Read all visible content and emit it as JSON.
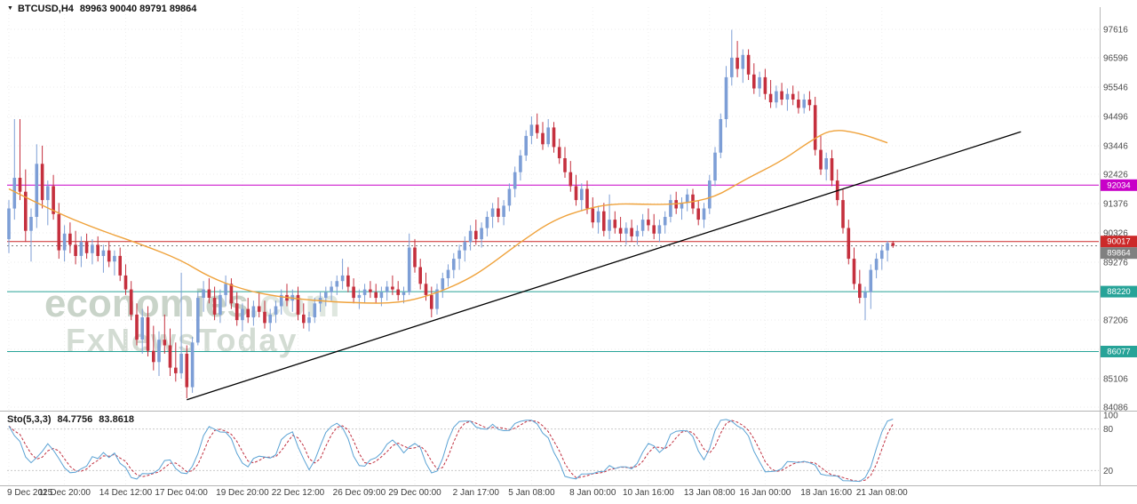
{
  "header": {
    "dropdown_icon": "▼",
    "symbol": "BTCUSD,H4",
    "ohlc": "89963 90040 89791 89864"
  },
  "watermark": {
    "brand": "economies",
    "domain": ".com",
    "tagline": "FxNewsToday"
  },
  "sto": {
    "label": "Sto(5,3,3)",
    "value_main": "84.7756",
    "value_signal": "83.8618",
    "scale_labels": [
      100,
      80,
      20
    ],
    "levels": [
      80,
      20
    ],
    "k_period": 5,
    "d_period": 3,
    "slowing": 3,
    "colors": {
      "main": "#5aa2d4",
      "signal": "#c03040"
    }
  },
  "chart_data": {
    "type": "candlestick",
    "symbol": "BTCUSD",
    "timeframe": "H4",
    "y_ticks": [
      97616,
      96596,
      95546,
      94496,
      93446,
      92426,
      91376,
      90326,
      89276,
      88226,
      87206,
      86156,
      85106,
      84086
    ],
    "x_labels": [
      "9 Dec 2025",
      "11 Dec 20:00",
      "14 Dec 12:00",
      "17 Dec 04:00",
      "19 Dec 20:00",
      "22 Dec 12:00",
      "26 Dec 09:00",
      "29 Dec 00:00",
      "2 Jan 17:00",
      "5 Jan 08:00",
      "8 Jan 00:00",
      "10 Jan 16:00",
      "13 Jan 08:00",
      "16 Jan 00:00",
      "18 Jan 16:00",
      "21 Jan 08:00"
    ],
    "x_label_indices": [
      0,
      10,
      21,
      31,
      42,
      52,
      63,
      73,
      84,
      94,
      105,
      115,
      126,
      136,
      147,
      157
    ],
    "colors": {
      "bull": "#7d9ed6",
      "bear": "#c5303e"
    },
    "levels": [
      {
        "price": 92034,
        "label": "92034",
        "color": "#c800c8",
        "dashed": false
      },
      {
        "price": 90017,
        "label": "90017",
        "color": "#cc2929",
        "dashed": false
      },
      {
        "price": 89864,
        "label": "89864",
        "color": "#808080",
        "dashed": true
      },
      {
        "price": 88220,
        "label": "88220",
        "color": "#27a398",
        "dashed": false
      },
      {
        "price": 86077,
        "label": "86077",
        "color": "#27a398",
        "dashed": false
      }
    ],
    "trendline": {
      "start_index": 32,
      "start_price": 84350,
      "end_index": 182,
      "end_price": 93950,
      "color": "#000000"
    },
    "ma": {
      "color": "#efa23b",
      "points": [
        [
          0,
          91900
        ],
        [
          8,
          91100
        ],
        [
          16,
          90450
        ],
        [
          24,
          89900
        ],
        [
          31,
          89350
        ],
        [
          36,
          88750
        ],
        [
          42,
          88300
        ],
        [
          48,
          88050
        ],
        [
          55,
          87900
        ],
        [
          62,
          87820
        ],
        [
          70,
          87800
        ],
        [
          76,
          88100
        ],
        [
          82,
          88600
        ],
        [
          86,
          89100
        ],
        [
          92,
          90000
        ],
        [
          98,
          90800
        ],
        [
          104,
          91200
        ],
        [
          109,
          91380
        ],
        [
          115,
          91340
        ],
        [
          121,
          91360
        ],
        [
          127,
          91600
        ],
        [
          132,
          92200
        ],
        [
          139,
          92900
        ],
        [
          144,
          93600
        ],
        [
          148,
          94050
        ],
        [
          153,
          93900
        ],
        [
          158,
          93550
        ]
      ]
    },
    "candles": [
      [
        90100,
        91500,
        89600,
        91200
      ],
      [
        91200,
        94400,
        90800,
        92300
      ],
      [
        92300,
        94400,
        91500,
        91800
      ],
      [
        91800,
        92600,
        90000,
        90400
      ],
      [
        90400,
        91200,
        89300,
        90900
      ],
      [
        90900,
        93500,
        90500,
        92800
      ],
      [
        92800,
        93450,
        91200,
        91500
      ],
      [
        91500,
        92200,
        90600,
        92000
      ],
      [
        92000,
        92400,
        90800,
        91000
      ],
      [
        91000,
        91400,
        89400,
        89700
      ],
      [
        89700,
        90600,
        89300,
        90300
      ],
      [
        90300,
        90700,
        89600,
        89900
      ],
      [
        89900,
        90400,
        89200,
        89500
      ],
      [
        89500,
        90200,
        89100,
        90000
      ],
      [
        90000,
        90300,
        89400,
        89600
      ],
      [
        89600,
        90100,
        89200,
        89900
      ],
      [
        89900,
        90200,
        89300,
        89500
      ],
      [
        89500,
        89900,
        88900,
        89700
      ],
      [
        89700,
        90000,
        89100,
        89300
      ],
      [
        89300,
        89700,
        88800,
        89500
      ],
      [
        89500,
        89800,
        88600,
        88800
      ],
      [
        88800,
        89200,
        88100,
        88300
      ],
      [
        88300,
        88600,
        87200,
        87400
      ],
      [
        87400,
        87800,
        86300,
        86500
      ],
      [
        86500,
        87600,
        86000,
        87300
      ],
      [
        87300,
        87700,
        85900,
        86100
      ],
      [
        86100,
        87000,
        85400,
        85700
      ],
      [
        85700,
        86800,
        85200,
        86500
      ],
      [
        86500,
        87400,
        86000,
        86300
      ],
      [
        86300,
        86900,
        85200,
        85500
      ],
      [
        85500,
        86400,
        85000,
        85300
      ],
      [
        85300,
        88900,
        85100,
        86000
      ],
      [
        86000,
        86300,
        84400,
        84800
      ],
      [
        84800,
        86600,
        84600,
        86400
      ],
      [
        86400,
        88200,
        86300,
        88000
      ],
      [
        88000,
        88600,
        87500,
        88300
      ],
      [
        88300,
        88700,
        87800,
        88000
      ],
      [
        88000,
        88400,
        87200,
        87400
      ],
      [
        87400,
        88300,
        87100,
        88100
      ],
      [
        88100,
        88800,
        87700,
        88500
      ],
      [
        88500,
        88700,
        87600,
        87800
      ],
      [
        87800,
        88200,
        87000,
        87200
      ],
      [
        87200,
        87800,
        86800,
        87600
      ],
      [
        87600,
        88000,
        87100,
        87300
      ],
      [
        87300,
        87900,
        87000,
        87700
      ],
      [
        87700,
        88200,
        87300,
        87500
      ],
      [
        87500,
        87900,
        86900,
        87100
      ],
      [
        87100,
        87600,
        86800,
        87400
      ],
      [
        87400,
        87900,
        87100,
        87700
      ],
      [
        87700,
        88300,
        87400,
        88100
      ],
      [
        88100,
        88500,
        87700,
        87900
      ],
      [
        87900,
        88300,
        87500,
        88100
      ],
      [
        88100,
        88400,
        87200,
        87400
      ],
      [
        87400,
        87800,
        86900,
        87100
      ],
      [
        87100,
        87500,
        86800,
        87300
      ],
      [
        87300,
        88000,
        87100,
        87800
      ],
      [
        87800,
        88200,
        87500,
        88000
      ],
      [
        88000,
        88400,
        87700,
        88200
      ],
      [
        88200,
        88600,
        87900,
        88400
      ],
      [
        88400,
        88800,
        88100,
        88600
      ],
      [
        88600,
        89400,
        88300,
        88800
      ],
      [
        88800,
        89100,
        88200,
        88400
      ],
      [
        88400,
        88700,
        87800,
        88000
      ],
      [
        88000,
        88300,
        87600,
        88100
      ],
      [
        88100,
        88500,
        87800,
        88300
      ],
      [
        88300,
        88600,
        88000,
        88200
      ],
      [
        88200,
        88500,
        87800,
        88000
      ],
      [
        88000,
        88400,
        87700,
        88200
      ],
      [
        88200,
        88600,
        87900,
        88400
      ],
      [
        88400,
        88800,
        88100,
        88300
      ],
      [
        88300,
        88600,
        87900,
        88100
      ],
      [
        88100,
        88400,
        87800,
        88200
      ],
      [
        88200,
        90300,
        88100,
        89800
      ],
      [
        89800,
        90100,
        88900,
        89100
      ],
      [
        89100,
        89400,
        88300,
        88500
      ],
      [
        88500,
        88900,
        87900,
        88100
      ],
      [
        88100,
        88400,
        87300,
        87600
      ],
      [
        87600,
        88500,
        87400,
        88300
      ],
      [
        88300,
        88900,
        88000,
        88700
      ],
      [
        88700,
        89200,
        88400,
        89000
      ],
      [
        89000,
        89600,
        88700,
        89400
      ],
      [
        89400,
        89900,
        89000,
        89700
      ],
      [
        89700,
        90200,
        89300,
        90000
      ],
      [
        90000,
        90600,
        89700,
        90400
      ],
      [
        90400,
        90800,
        89900,
        90100
      ],
      [
        90100,
        90700,
        89800,
        90500
      ],
      [
        90500,
        91100,
        90200,
        90900
      ],
      [
        90900,
        91400,
        90500,
        91200
      ],
      [
        91200,
        91600,
        90700,
        90900
      ],
      [
        90900,
        91500,
        90600,
        91300
      ],
      [
        91300,
        92100,
        91100,
        91900
      ],
      [
        91900,
        92700,
        91600,
        92500
      ],
      [
        92500,
        93300,
        92200,
        93100
      ],
      [
        93100,
        94000,
        92900,
        93800
      ],
      [
        93800,
        94500,
        93500,
        94200
      ],
      [
        94200,
        94600,
        93700,
        93900
      ],
      [
        93900,
        94300,
        93300,
        93500
      ],
      [
        93500,
        94400,
        93400,
        94100
      ],
      [
        94100,
        94300,
        93200,
        93400
      ],
      [
        93400,
        93700,
        92800,
        93000
      ],
      [
        93000,
        93400,
        92300,
        92500
      ],
      [
        92500,
        92900,
        91800,
        92000
      ],
      [
        92000,
        92400,
        91300,
        91500
      ],
      [
        91500,
        92100,
        91100,
        91900
      ],
      [
        91900,
        92200,
        91000,
        91200
      ],
      [
        91200,
        91600,
        90500,
        90700
      ],
      [
        90700,
        91300,
        90300,
        91100
      ],
      [
        91100,
        91400,
        90200,
        90400
      ],
      [
        90400,
        91700,
        90100,
        90800
      ],
      [
        90800,
        91100,
        90300,
        90500
      ],
      [
        90500,
        90900,
        90000,
        90300
      ],
      [
        90300,
        90700,
        89900,
        90500
      ],
      [
        90500,
        90800,
        90000,
        90200
      ],
      [
        90200,
        90600,
        89900,
        90400
      ],
      [
        90400,
        91000,
        90200,
        90800
      ],
      [
        90800,
        91200,
        90400,
        90600
      ],
      [
        90600,
        91000,
        90100,
        90300
      ],
      [
        90300,
        90800,
        90000,
        90600
      ],
      [
        90600,
        91100,
        90300,
        90900
      ],
      [
        90900,
        91700,
        90700,
        91500
      ],
      [
        91500,
        91800,
        91000,
        91200
      ],
      [
        91200,
        91600,
        90800,
        91400
      ],
      [
        91400,
        91900,
        91100,
        91700
      ],
      [
        91700,
        91900,
        91000,
        91200
      ],
      [
        91200,
        91500,
        90600,
        90800
      ],
      [
        90800,
        91400,
        90500,
        91200
      ],
      [
        91200,
        92400,
        91000,
        92200
      ],
      [
        92200,
        93400,
        92000,
        93200
      ],
      [
        93200,
        94600,
        93000,
        94400
      ],
      [
        94400,
        96300,
        94100,
        95900
      ],
      [
        95900,
        97600,
        95600,
        96600
      ],
      [
        96600,
        97200,
        95900,
        96200
      ],
      [
        96200,
        96900,
        95700,
        96700
      ],
      [
        96700,
        96900,
        95800,
        96000
      ],
      [
        96000,
        96400,
        95300,
        95500
      ],
      [
        95500,
        96100,
        95200,
        95900
      ],
      [
        95900,
        96200,
        95100,
        95300
      ],
      [
        95300,
        95800,
        94800,
        95000
      ],
      [
        95000,
        95600,
        94800,
        95400
      ],
      [
        95400,
        95700,
        94900,
        95100
      ],
      [
        95100,
        95500,
        94700,
        95300
      ],
      [
        95300,
        95600,
        94900,
        95100
      ],
      [
        95100,
        95400,
        94600,
        94800
      ],
      [
        94800,
        95300,
        94600,
        95100
      ],
      [
        95100,
        95400,
        94700,
        94900
      ],
      [
        94900,
        95200,
        93100,
        93300
      ],
      [
        93300,
        93800,
        92400,
        92600
      ],
      [
        92600,
        93200,
        92200,
        93000
      ],
      [
        93000,
        93300,
        92000,
        92200
      ],
      [
        92200,
        92600,
        91300,
        91500
      ],
      [
        91500,
        91900,
        90300,
        90500
      ],
      [
        90500,
        90800,
        89200,
        89400
      ],
      [
        89400,
        89800,
        88300,
        88500
      ],
      [
        88500,
        89000,
        87800,
        88000
      ],
      [
        88000,
        88400,
        87200,
        88200
      ],
      [
        88200,
        89200,
        87600,
        89000
      ],
      [
        89000,
        89600,
        88700,
        89400
      ],
      [
        89400,
        89900,
        89000,
        89700
      ],
      [
        89700,
        90040,
        89300,
        89963
      ],
      [
        89963,
        90040,
        89791,
        89864
      ]
    ]
  }
}
